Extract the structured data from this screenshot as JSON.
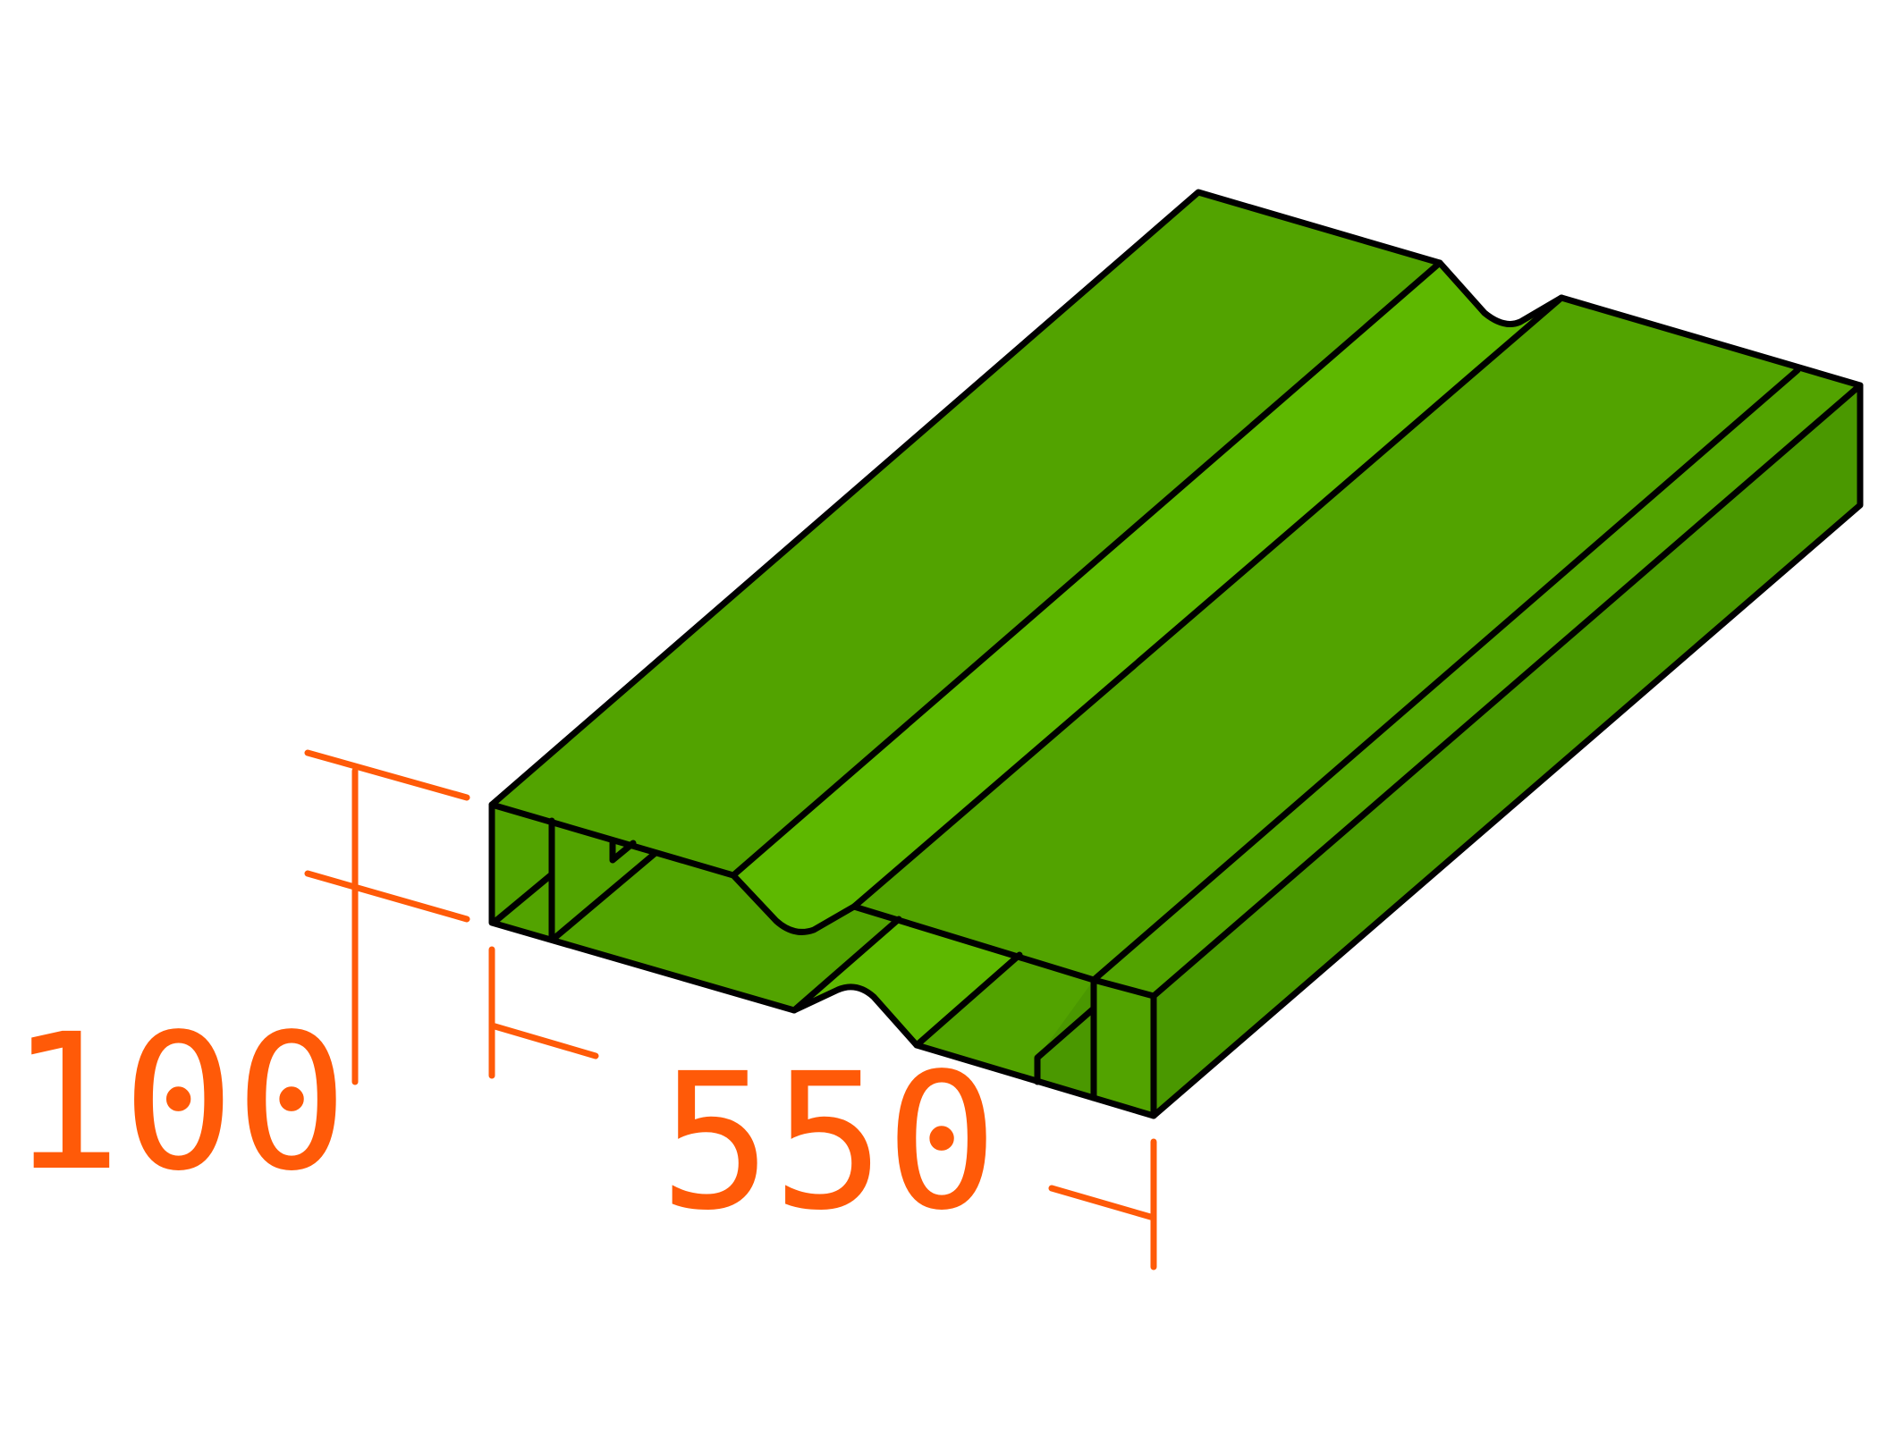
{
  "dimensions": {
    "height_label": "100",
    "width_label": "550"
  },
  "colors": {
    "top_face": "#52a300",
    "groove_face": "#5eb800",
    "front_face": "#4a9800",
    "outline": "#000000",
    "dimension": "#ff5a08"
  }
}
